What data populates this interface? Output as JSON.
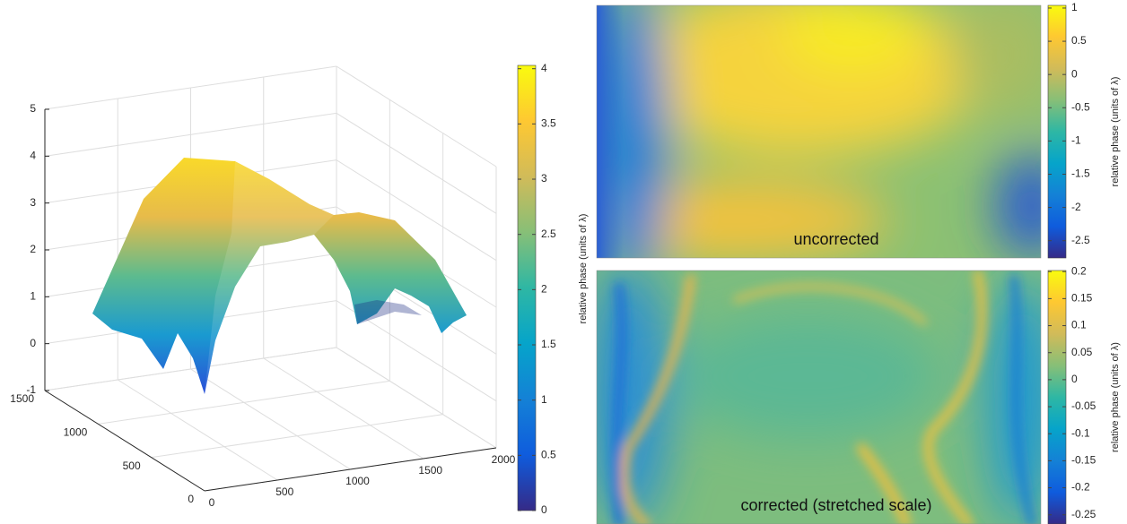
{
  "chart_data": [
    {
      "type": "surface3d",
      "xlim": [
        0,
        2000
      ],
      "xticks": [
        0,
        500,
        1000,
        1500,
        2000
      ],
      "ylim": [
        0,
        1500
      ],
      "yticks": [
        0,
        500,
        1000,
        1500
      ],
      "zlim": [
        -1,
        5
      ],
      "zticks": [
        -1,
        0,
        1,
        2,
        3,
        4,
        5
      ],
      "clim": [
        0,
        4.03
      ],
      "cticks": [
        0,
        0.5,
        1,
        1.5,
        2,
        2.5,
        3,
        3.5,
        4
      ],
      "colorbar_label": "relative phase (units of λ)",
      "grid": true,
      "colormap": [
        "#352a87",
        "#0f5cdd",
        "#1481d6",
        "#06a4ca",
        "#2eb7a4",
        "#87bf77",
        "#d1bb59",
        "#fec832",
        "#f9fb0e"
      ]
    },
    {
      "type": "heatmap",
      "title": "uncorrected",
      "clim": [
        -2.76,
        1.04
      ],
      "cticks": [
        1,
        0.5,
        0,
        -0.5,
        -1,
        -1.5,
        -2,
        -2.5
      ],
      "colorbar_label": "relative phase (units of λ)",
      "colormap": [
        "#352a87",
        "#0f5cdd",
        "#1481d6",
        "#06a4ca",
        "#2eb7a4",
        "#87bf77",
        "#d1bb59",
        "#fec832",
        "#f9fb0e"
      ]
    },
    {
      "type": "heatmap",
      "title": "corrected (stretched scale)",
      "clim": [
        -0.267,
        0.202
      ],
      "cticks": [
        0.2,
        0.15,
        0.1,
        0.05,
        0,
        -0.05,
        -0.1,
        -0.15,
        -0.2,
        -0.25
      ],
      "colorbar_label": "relative phase (units of λ)",
      "colormap": [
        "#352a87",
        "#0f5cdd",
        "#1481d6",
        "#06a4ca",
        "#2eb7a4",
        "#87bf77",
        "#d1bb59",
        "#fec832",
        "#f9fb0e"
      ]
    }
  ]
}
